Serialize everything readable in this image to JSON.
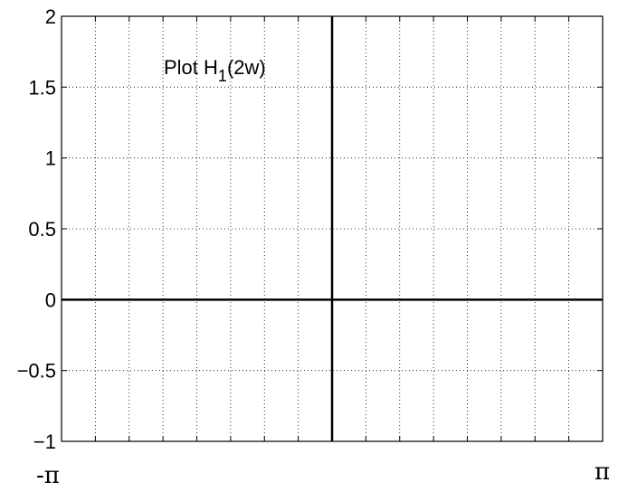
{
  "chart_data": {
    "type": "line",
    "title": "",
    "xlabel": "",
    "ylabel": "",
    "xlim": [
      -3.14159,
      3.14159
    ],
    "ylim": [
      -1,
      2
    ],
    "x_tick_labels": [
      "-π",
      "π"
    ],
    "y_ticks": [
      -1,
      -0.5,
      0,
      0.5,
      1,
      1.5,
      2
    ],
    "y_tick_labels": [
      "−1",
      "−0.5",
      "0",
      "0.5",
      "1",
      "1.5",
      "2"
    ],
    "grid": true,
    "annotation": {
      "prefix": "Plot H",
      "subscript": "1",
      "suffix": "(2w)"
    },
    "series": [
      {
        "x": [
          -3.14159,
          3.14159
        ],
        "y": [
          0,
          0
        ]
      }
    ],
    "reference_lines": [
      {
        "axis": "x",
        "value": 0
      }
    ]
  }
}
